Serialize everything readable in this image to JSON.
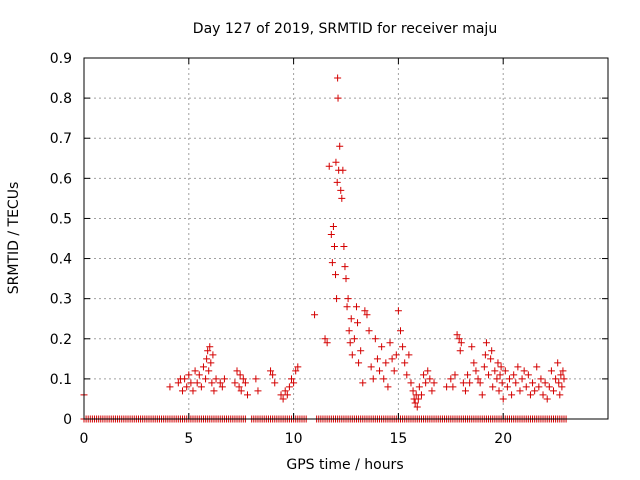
{
  "chart_data": {
    "type": "scatter",
    "title": "Day 127 of 2019, SRMTID for receiver maju",
    "xlabel": "GPS time / hours",
    "ylabel": "SRMTID / TECUs",
    "xlim": [
      0,
      25
    ],
    "ylim": [
      0,
      0.9
    ],
    "xticks": [
      0,
      5,
      10,
      15,
      20
    ],
    "xtick_labels": [
      "0",
      "5",
      "10",
      "15",
      "20"
    ],
    "yticks": [
      0,
      0.1,
      0.2,
      0.3,
      0.4,
      0.5,
      0.6,
      0.7,
      0.8,
      0.9
    ],
    "ytick_labels": [
      "0",
      "0.1",
      "0.2",
      "0.3",
      "0.4",
      "0.5",
      "0.6",
      "0.7",
      "0.8",
      "0.9"
    ],
    "grid": true,
    "marker": "+",
    "color": "#d40000",
    "series": [
      {
        "name": "SRMTID",
        "points": [
          [
            0.0,
            0.06
          ],
          [
            4.1,
            0.08
          ],
          [
            4.5,
            0.09
          ],
          [
            4.6,
            0.1
          ],
          [
            4.7,
            0.07
          ],
          [
            4.8,
            0.1
          ],
          [
            4.9,
            0.08
          ],
          [
            5.0,
            0.11
          ],
          [
            5.1,
            0.09
          ],
          [
            5.2,
            0.07
          ],
          [
            5.3,
            0.12
          ],
          [
            5.4,
            0.09
          ],
          [
            5.5,
            0.11
          ],
          [
            5.6,
            0.08
          ],
          [
            5.7,
            0.13
          ],
          [
            5.8,
            0.1
          ],
          [
            5.85,
            0.15
          ],
          [
            5.9,
            0.17
          ],
          [
            5.95,
            0.12
          ],
          [
            6.0,
            0.18
          ],
          [
            6.05,
            0.14
          ],
          [
            6.1,
            0.09
          ],
          [
            6.15,
            0.16
          ],
          [
            6.2,
            0.07
          ],
          [
            6.3,
            0.1
          ],
          [
            6.5,
            0.09
          ],
          [
            6.6,
            0.08
          ],
          [
            6.7,
            0.1
          ],
          [
            7.2,
            0.09
          ],
          [
            7.3,
            0.12
          ],
          [
            7.4,
            0.08
          ],
          [
            7.45,
            0.11
          ],
          [
            7.5,
            0.07
          ],
          [
            7.6,
            0.1
          ],
          [
            7.7,
            0.09
          ],
          [
            7.8,
            0.06
          ],
          [
            8.2,
            0.1
          ],
          [
            8.3,
            0.07
          ],
          [
            8.9,
            0.12
          ],
          [
            9.0,
            0.11
          ],
          [
            9.1,
            0.09
          ],
          [
            9.4,
            0.06
          ],
          [
            9.5,
            0.05
          ],
          [
            9.6,
            0.07
          ],
          [
            9.7,
            0.06
          ],
          [
            9.8,
            0.08
          ],
          [
            9.9,
            0.1
          ],
          [
            10.0,
            0.09
          ],
          [
            10.1,
            0.12
          ],
          [
            10.2,
            0.13
          ],
          [
            11.0,
            0.26
          ],
          [
            11.5,
            0.2
          ],
          [
            11.6,
            0.19
          ],
          [
            11.7,
            0.63
          ],
          [
            11.8,
            0.46
          ],
          [
            11.85,
            0.39
          ],
          [
            11.9,
            0.48
          ],
          [
            11.95,
            0.43
          ],
          [
            12.0,
            0.36
          ],
          [
            12.02,
            0.64
          ],
          [
            12.05,
            0.3
          ],
          [
            12.08,
            0.59
          ],
          [
            12.1,
            0.85
          ],
          [
            12.12,
            0.8
          ],
          [
            12.15,
            0.62
          ],
          [
            12.2,
            0.68
          ],
          [
            12.25,
            0.57
          ],
          [
            12.3,
            0.55
          ],
          [
            12.35,
            0.62
          ],
          [
            12.4,
            0.43
          ],
          [
            12.45,
            0.38
          ],
          [
            12.5,
            0.35
          ],
          [
            12.55,
            0.28
          ],
          [
            12.6,
            0.3
          ],
          [
            12.65,
            0.22
          ],
          [
            12.7,
            0.19
          ],
          [
            12.75,
            0.25
          ],
          [
            12.8,
            0.16
          ],
          [
            12.9,
            0.2
          ],
          [
            13.0,
            0.28
          ],
          [
            13.05,
            0.24
          ],
          [
            13.1,
            0.14
          ],
          [
            13.2,
            0.17
          ],
          [
            13.3,
            0.09
          ],
          [
            13.4,
            0.27
          ],
          [
            13.5,
            0.26
          ],
          [
            13.6,
            0.22
          ],
          [
            13.7,
            0.13
          ],
          [
            13.8,
            0.1
          ],
          [
            13.9,
            0.2
          ],
          [
            14.0,
            0.15
          ],
          [
            14.1,
            0.12
          ],
          [
            14.2,
            0.18
          ],
          [
            14.3,
            0.1
          ],
          [
            14.4,
            0.14
          ],
          [
            14.5,
            0.08
          ],
          [
            14.6,
            0.19
          ],
          [
            14.7,
            0.15
          ],
          [
            14.8,
            0.12
          ],
          [
            14.9,
            0.16
          ],
          [
            15.0,
            0.27
          ],
          [
            15.1,
            0.22
          ],
          [
            15.2,
            0.18
          ],
          [
            15.3,
            0.14
          ],
          [
            15.4,
            0.11
          ],
          [
            15.5,
            0.16
          ],
          [
            15.6,
            0.09
          ],
          [
            15.7,
            0.07
          ],
          [
            15.75,
            0.05
          ],
          [
            15.8,
            0.04
          ],
          [
            15.85,
            0.06
          ],
          [
            15.9,
            0.03
          ],
          [
            15.95,
            0.05
          ],
          [
            16.0,
            0.08
          ],
          [
            16.1,
            0.06
          ],
          [
            16.2,
            0.11
          ],
          [
            16.3,
            0.09
          ],
          [
            16.4,
            0.12
          ],
          [
            16.5,
            0.1
          ],
          [
            16.6,
            0.07
          ],
          [
            16.7,
            0.09
          ],
          [
            17.3,
            0.08
          ],
          [
            17.5,
            0.1
          ],
          [
            17.6,
            0.08
          ],
          [
            17.7,
            0.11
          ],
          [
            17.8,
            0.21
          ],
          [
            17.9,
            0.2
          ],
          [
            17.95,
            0.17
          ],
          [
            18.0,
            0.19
          ],
          [
            18.1,
            0.09
          ],
          [
            18.2,
            0.07
          ],
          [
            18.3,
            0.11
          ],
          [
            18.4,
            0.09
          ],
          [
            18.5,
            0.18
          ],
          [
            18.6,
            0.14
          ],
          [
            18.7,
            0.12
          ],
          [
            18.8,
            0.1
          ],
          [
            18.9,
            0.09
          ],
          [
            19.0,
            0.06
          ],
          [
            19.1,
            0.13
          ],
          [
            19.15,
            0.16
          ],
          [
            19.2,
            0.19
          ],
          [
            19.3,
            0.11
          ],
          [
            19.4,
            0.15
          ],
          [
            19.45,
            0.17
          ],
          [
            19.5,
            0.08
          ],
          [
            19.6,
            0.12
          ],
          [
            19.7,
            0.1
          ],
          [
            19.75,
            0.14
          ],
          [
            19.8,
            0.07
          ],
          [
            19.85,
            0.11
          ],
          [
            19.9,
            0.13
          ],
          [
            19.95,
            0.09
          ],
          [
            20.0,
            0.05
          ],
          [
            20.1,
            0.12
          ],
          [
            20.2,
            0.08
          ],
          [
            20.3,
            0.1
          ],
          [
            20.4,
            0.06
          ],
          [
            20.5,
            0.11
          ],
          [
            20.6,
            0.09
          ],
          [
            20.7,
            0.13
          ],
          [
            20.8,
            0.07
          ],
          [
            20.9,
            0.1
          ],
          [
            21.0,
            0.12
          ],
          [
            21.1,
            0.08
          ],
          [
            21.2,
            0.11
          ],
          [
            21.3,
            0.06
          ],
          [
            21.4,
            0.09
          ],
          [
            21.5,
            0.07
          ],
          [
            21.6,
            0.13
          ],
          [
            21.7,
            0.08
          ],
          [
            21.8,
            0.1
          ],
          [
            21.9,
            0.06
          ],
          [
            22.0,
            0.09
          ],
          [
            22.1,
            0.05
          ],
          [
            22.2,
            0.08
          ],
          [
            22.3,
            0.12
          ],
          [
            22.4,
            0.07
          ],
          [
            22.5,
            0.1
          ],
          [
            22.6,
            0.14
          ],
          [
            22.65,
            0.09
          ],
          [
            22.7,
            0.06
          ],
          [
            22.75,
            0.11
          ],
          [
            22.8,
            0.08
          ],
          [
            22.85,
            0.12
          ],
          [
            22.9,
            0.1
          ]
        ],
        "zero_baseline_ranges": [
          [
            0.0,
            23.0
          ]
        ],
        "zero_baseline_gaps": [
          [
            7.75,
            7.95
          ],
          [
            10.6,
            11.0
          ]
        ]
      }
    ]
  }
}
